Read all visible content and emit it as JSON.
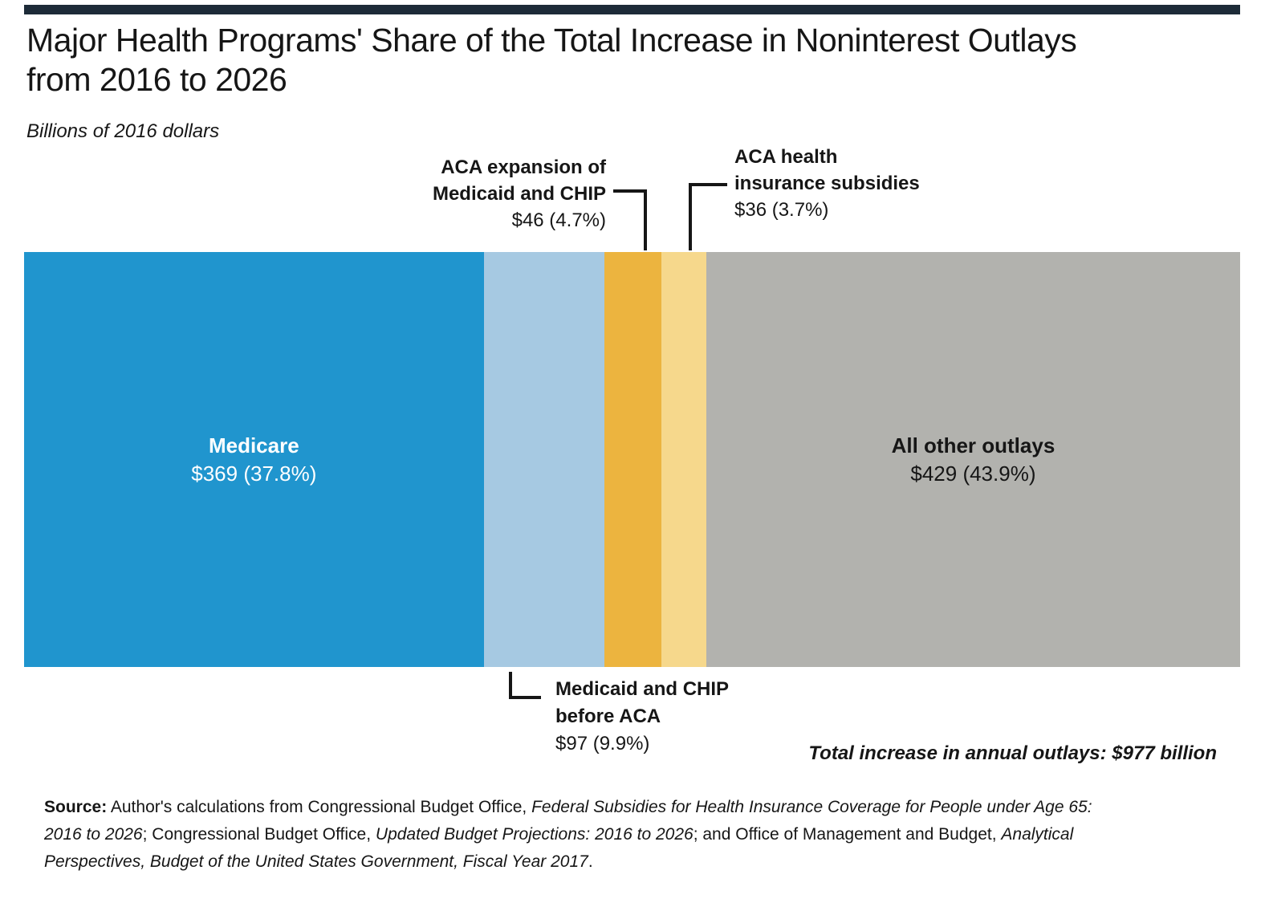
{
  "page": {
    "background": "#ffffff",
    "top_rule_color": "#1d2b38",
    "text_color": "#161616"
  },
  "header": {
    "title_line1": "Major Health Programs' Share of the Total Increase in Noninterest Outlays",
    "title_line2": "from 2016 to 2026",
    "unit_label": "Billions of 2016 dollars"
  },
  "callouts": {
    "aca_expansion": {
      "line1": "ACA expansion of",
      "line2": "Medicaid and CHIP",
      "value": "$46 (4.7%)"
    },
    "aca_subsidies": {
      "line1": "ACA health",
      "line2": "insurance subsidies",
      "value": "$36 (3.7%)"
    },
    "medicaid_before_aca": {
      "line1": "Medicaid and CHIP",
      "line2": "before ACA",
      "value": "$97 (9.9%)"
    }
  },
  "total_note": "Total increase in annual outlays: $977 billion",
  "chart_data": {
    "type": "bar",
    "subtype": "stacked-horizontal-100-percent",
    "title": "Major Health Programs' Share of the Total Increase in Noninterest Outlays from 2016 to 2026",
    "unit_label": "Billions of 2016 dollars",
    "total_billions": 977,
    "total_label": "Total increase in annual outlays: $977 billion",
    "categories": [
      "Medicare",
      "Medicaid and CHIP before ACA",
      "ACA expansion of Medicaid and CHIP",
      "ACA health insurance subsidies",
      "All other outlays"
    ],
    "values_billions": [
      369,
      97,
      46,
      36,
      429
    ],
    "percents": [
      37.8,
      9.9,
      4.7,
      3.7,
      43.9
    ],
    "colors": [
      "#2095ce",
      "#a6c9e2",
      "#ecb43f",
      "#f6d88c",
      "#b2b2ae"
    ],
    "segments": [
      {
        "name": "Medicare",
        "value_billions": 369,
        "percent": 37.8,
        "color": "#2095ce",
        "inside_label": "Medicare",
        "inside_value": "$369 (37.8%)",
        "label_color": "#ffffff"
      },
      {
        "name": "Medicaid and CHIP before ACA",
        "value_billions": 97,
        "percent": 9.9,
        "color": "#a6c9e2"
      },
      {
        "name": "ACA expansion of Medicaid and CHIP",
        "value_billions": 46,
        "percent": 4.7,
        "color": "#ecb43f"
      },
      {
        "name": "ACA health insurance subsidies",
        "value_billions": 36,
        "percent": 3.7,
        "color": "#f6d88c"
      },
      {
        "name": "All other outlays",
        "value_billions": 429,
        "percent": 43.9,
        "color": "#b2b2ae",
        "inside_label": "All other outlays",
        "inside_value": "$429 (43.9%)",
        "label_color": "#161616"
      }
    ]
  },
  "source": {
    "lines": [
      [
        {
          "t": "Source:",
          "b": true
        },
        {
          "t": " Author's calculations from Congressional Budget Office, "
        },
        {
          "t": "Federal Subsidies for Health Insurance Coverage for People under Age 65:",
          "i": true
        }
      ],
      [
        {
          "t": "2016 to 2026",
          "i": true
        },
        {
          "t": "; Congressional Budget Office, "
        },
        {
          "t": "Updated Budget Projections: 2016 to 2026",
          "i": true
        },
        {
          "t": "; and Office of Management and Budget, "
        },
        {
          "t": "Analytical",
          "i": true
        }
      ],
      [
        {
          "t": "Perspectives, Budget of the United States Government, Fiscal Year 2017",
          "i": true
        },
        {
          "t": "."
        }
      ]
    ]
  }
}
